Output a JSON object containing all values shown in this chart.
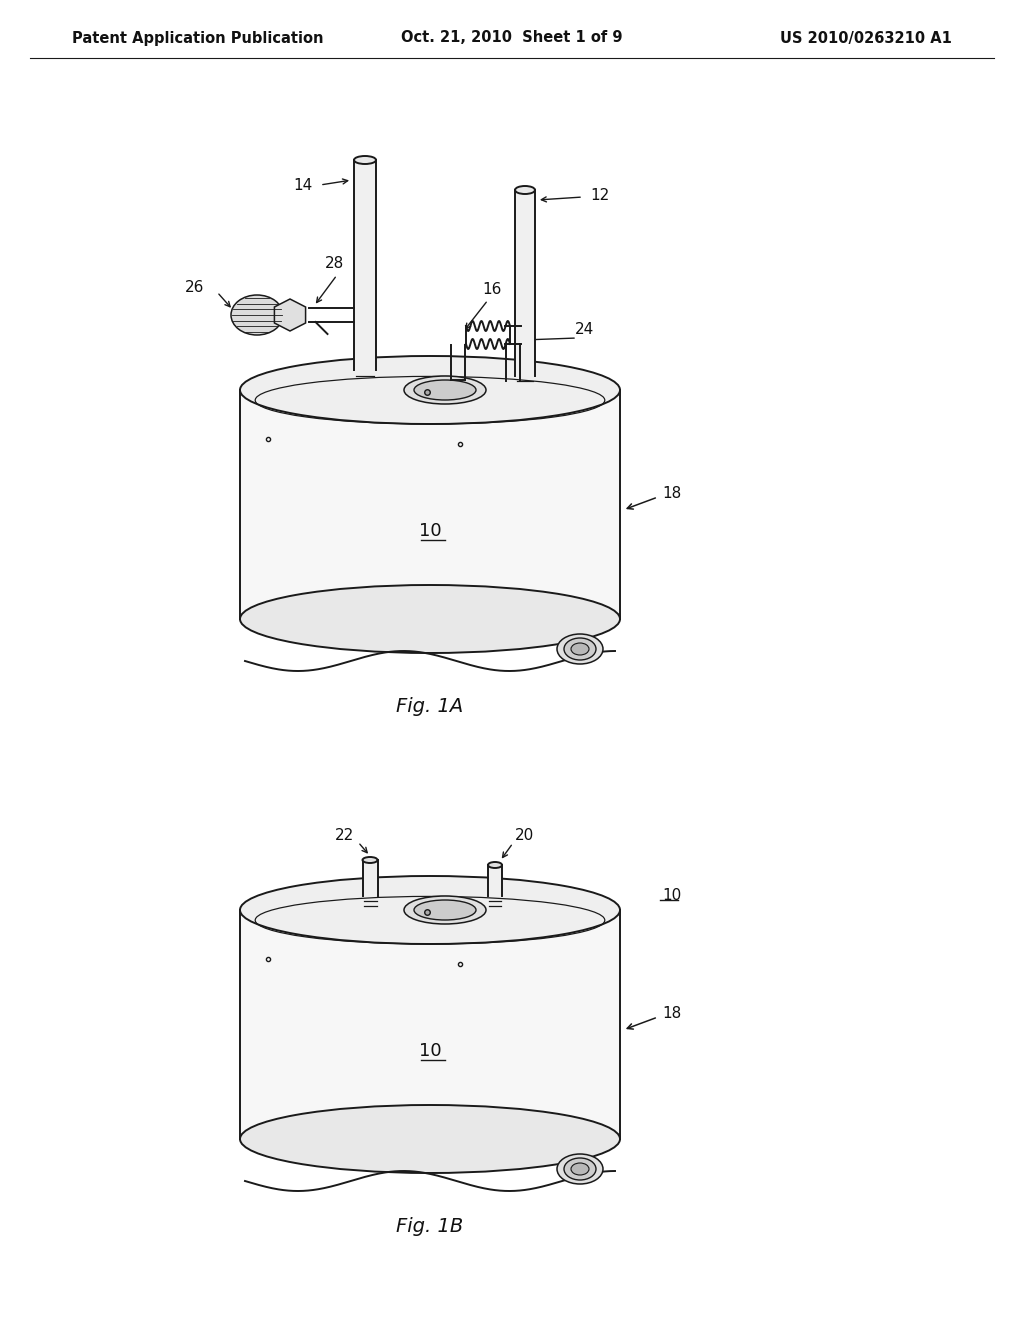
{
  "background_color": "#ffffff",
  "header_left": "Patent Application Publication",
  "header_center": "Oct. 21, 2010  Sheet 1 of 9",
  "header_right": "US 2010/0263210 A1",
  "header_fontsize": 10.5,
  "fig1a_label": "Fig. 1A",
  "fig1b_label": "Fig. 1B",
  "line_color": "#1a1a1a",
  "line_width": 1.4,
  "tank_fill": "#f5f5f5",
  "gray_light": "#e8e8e8",
  "gray_mid": "#d0d0d0",
  "gray_dark": "#b0b0b0"
}
